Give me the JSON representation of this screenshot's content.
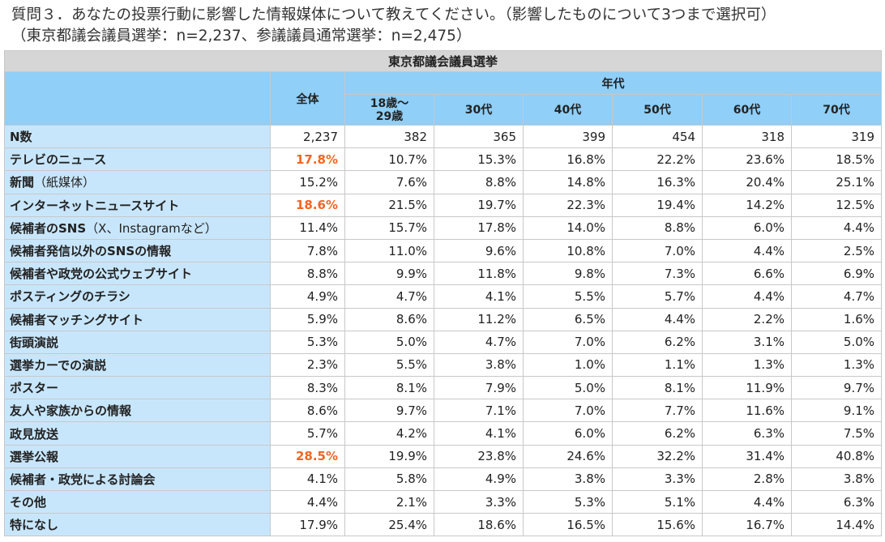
{
  "title": {
    "line1": "質問３．あなたの投票行動に影響した情報媒体について教えてください。（影響したものについて3つまで選択可）",
    "line2": "（東京都議会議員選挙：n=2,237、参議議員通常選挙：n=2,475）"
  },
  "table": {
    "caption": "東京都議会議員選挙",
    "header_total": "全体",
    "header_age_group": "年代",
    "age_columns": [
      "18歳～\n29歳",
      "30代",
      "40代",
      "50代",
      "60代",
      "70代"
    ],
    "rows": [
      {
        "label": "N数",
        "values": [
          "2,237",
          "382",
          "365",
          "399",
          "454",
          "318",
          "319"
        ],
        "highlight_total": false
      },
      {
        "label": "テレビのニュース",
        "values": [
          "17.8%",
          "10.7%",
          "15.3%",
          "16.8%",
          "22.2%",
          "23.6%",
          "18.5%"
        ],
        "highlight_total": true
      },
      {
        "label": "新聞",
        "label_suffix": "（紙媒体）",
        "values": [
          "15.2%",
          "7.6%",
          "8.8%",
          "14.8%",
          "16.3%",
          "20.4%",
          "25.1%"
        ],
        "highlight_total": false
      },
      {
        "label": "インターネットニュースサイト",
        "values": [
          "18.6%",
          "21.5%",
          "19.7%",
          "22.3%",
          "19.4%",
          "14.2%",
          "12.5%"
        ],
        "highlight_total": true
      },
      {
        "label": "候補者のSNS",
        "label_suffix": "（X、Instagramなど）",
        "values": [
          "11.4%",
          "15.7%",
          "17.8%",
          "14.0%",
          "8.8%",
          "6.0%",
          "4.4%"
        ],
        "highlight_total": false
      },
      {
        "label": "候補者発信以外のSNSの情報",
        "values": [
          "7.8%",
          "11.0%",
          "9.6%",
          "10.8%",
          "7.0%",
          "4.4%",
          "2.5%"
        ],
        "highlight_total": false
      },
      {
        "label": "候補者や政党の公式ウェブサイト",
        "values": [
          "8.8%",
          "9.9%",
          "11.8%",
          "9.8%",
          "7.3%",
          "6.6%",
          "6.9%"
        ],
        "highlight_total": false
      },
      {
        "label": "ポスティングのチラシ",
        "values": [
          "4.9%",
          "4.7%",
          "4.1%",
          "5.5%",
          "5.7%",
          "4.4%",
          "4.7%"
        ],
        "highlight_total": false
      },
      {
        "label": "候補者マッチングサイト",
        "values": [
          "5.9%",
          "8.6%",
          "11.2%",
          "6.5%",
          "4.4%",
          "2.2%",
          "1.6%"
        ],
        "highlight_total": false
      },
      {
        "label": "街頭演説",
        "values": [
          "5.3%",
          "5.0%",
          "4.7%",
          "7.0%",
          "6.2%",
          "3.1%",
          "5.0%"
        ],
        "highlight_total": false
      },
      {
        "label": "選挙カーでの演説",
        "values": [
          "2.3%",
          "5.5%",
          "3.8%",
          "1.0%",
          "1.1%",
          "1.3%",
          "1.3%"
        ],
        "highlight_total": false
      },
      {
        "label": "ポスター",
        "values": [
          "8.3%",
          "8.1%",
          "7.9%",
          "5.0%",
          "8.1%",
          "11.9%",
          "9.7%"
        ],
        "highlight_total": false
      },
      {
        "label": "友人や家族からの情報",
        "values": [
          "8.6%",
          "9.7%",
          "7.1%",
          "7.0%",
          "7.7%",
          "11.6%",
          "9.1%"
        ],
        "highlight_total": false
      },
      {
        "label": "政見放送",
        "values": [
          "5.7%",
          "4.2%",
          "4.1%",
          "6.0%",
          "6.2%",
          "6.3%",
          "7.5%"
        ],
        "highlight_total": false
      },
      {
        "label": "選挙公報",
        "values": [
          "28.5%",
          "19.9%",
          "23.8%",
          "24.6%",
          "32.2%",
          "31.4%",
          "40.8%"
        ],
        "highlight_total": true
      },
      {
        "label": "候補者・政党による討論会",
        "values": [
          "4.1%",
          "5.8%",
          "4.9%",
          "3.8%",
          "3.3%",
          "2.8%",
          "3.8%"
        ],
        "highlight_total": false
      },
      {
        "label": "その他",
        "values": [
          "4.4%",
          "2.1%",
          "3.3%",
          "5.3%",
          "5.1%",
          "4.4%",
          "6.3%"
        ],
        "highlight_total": false
      },
      {
        "label": "特になし",
        "values": [
          "17.9%",
          "25.4%",
          "18.6%",
          "16.5%",
          "15.6%",
          "16.7%",
          "14.4%"
        ],
        "highlight_total": false
      }
    ]
  },
  "colors": {
    "header_blue": "#8fcff8",
    "label_blue": "#c8e6fb",
    "caption_gray": "#d6d6d6",
    "highlight_orange": "#f26522"
  }
}
